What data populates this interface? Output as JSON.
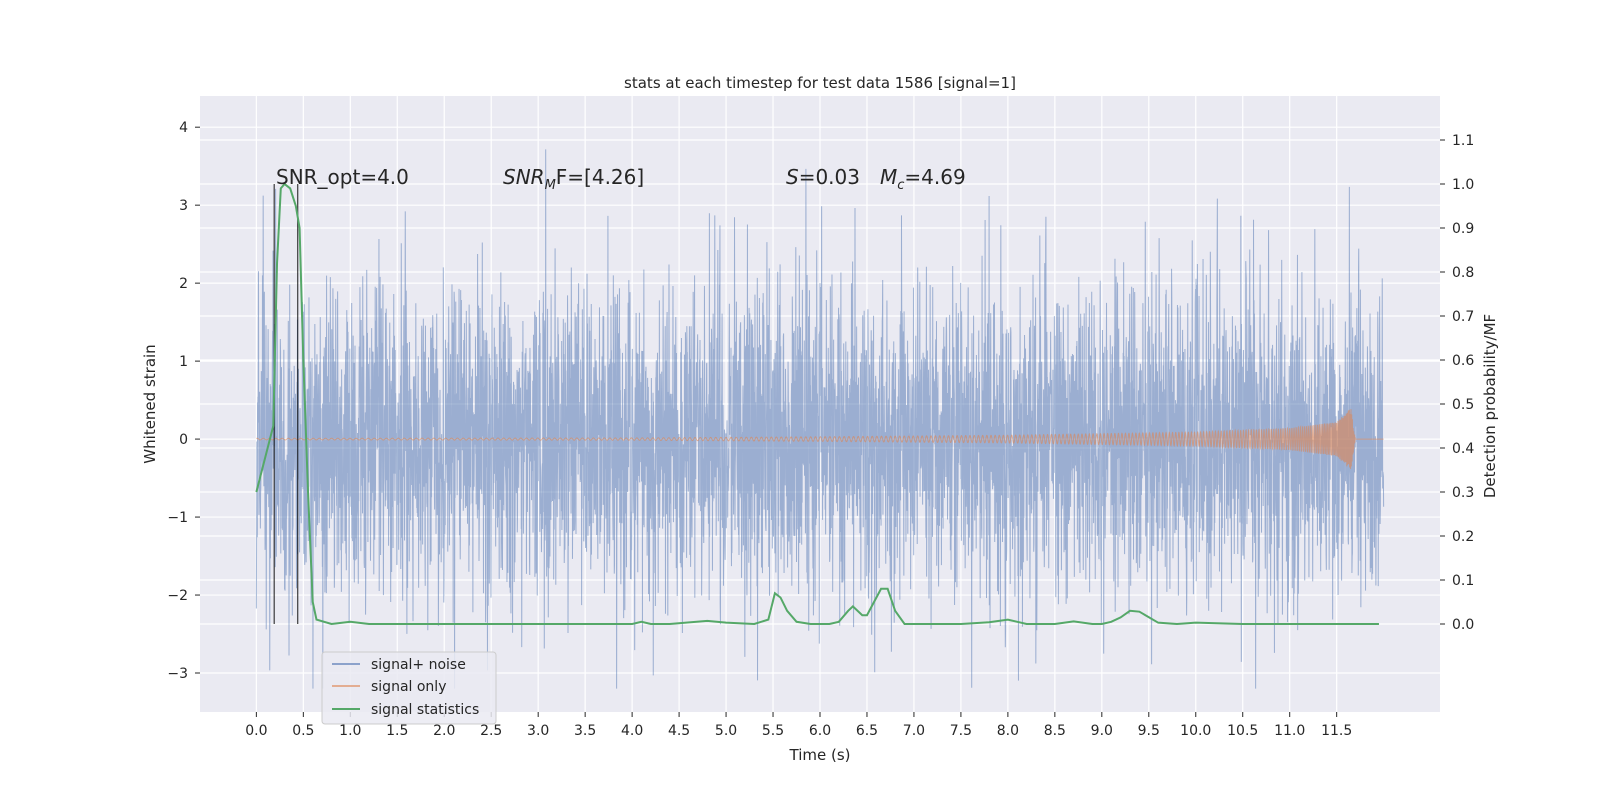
{
  "chart_data": {
    "type": "line",
    "title": "stats at each timestep for test data 1586 [signal=1]",
    "xlabel": "Time (s)",
    "ylabel_left": "Whitened strain",
    "ylabel_right": "Detection probability/MF",
    "xlim": [
      -0.6,
      12.6
    ],
    "ylim_left": [
      -3.5,
      4.4
    ],
    "ylim_right": [
      -0.2,
      1.2
    ],
    "x_ticks": [
      "0.0",
      "0.5",
      "1.0",
      "1.5",
      "2.0",
      "2.5",
      "3.0",
      "3.5",
      "4.0",
      "4.5",
      "5.0",
      "5.5",
      "6.0",
      "6.5",
      "7.0",
      "7.5",
      "8.0",
      "8.5",
      "9.0",
      "9.5",
      "10.0",
      "10.5",
      "11.0",
      "11.5"
    ],
    "y_ticks_left": [
      "4",
      "3",
      "2",
      "1",
      "0",
      "−1",
      "−2",
      "−3"
    ],
    "y_ticks_right": [
      "1.1",
      "1.0",
      "0.9",
      "0.8",
      "0.7",
      "0.6",
      "0.5",
      "0.4",
      "0.3",
      "0.2",
      "0.1",
      "0.0"
    ],
    "grid": true,
    "legend_position": "lower-left",
    "annotations": {
      "snr_opt": "SNR_opt=4.0",
      "snr_mf_sym": "SNR",
      "snr_mf_sub": "M",
      "snr_mf_rest": "F=[4.26]",
      "s_sym": "S",
      "s_val": "=0.03",
      "mc_sym": "M",
      "mc_sub": "c",
      "mc_val": "=4.69"
    },
    "markers": {
      "vertical_lines_x": [
        0.19,
        0.44
      ],
      "right_axis_vertical_lines_range": [
        0.0,
        1.0
      ]
    },
    "series": [
      {
        "name": "signal+ noise",
        "color": "#4c72b0",
        "axis": "left",
        "description_values": {
          "t_start": 0.0,
          "t_end": 12.0,
          "amplitude_std": 1.0,
          "min": -3.2,
          "max": 4.1
        }
      },
      {
        "name": "signal only",
        "color": "#dd8452",
        "axis": "left",
        "chirp_envelope": {
          "x": [
            0.0,
            4.0,
            6.0,
            8.0,
            10.0,
            11.0,
            11.5,
            11.65,
            11.7,
            12.0
          ],
          "amp": [
            0.01,
            0.015,
            0.03,
            0.05,
            0.09,
            0.14,
            0.22,
            0.4,
            0.0,
            0.0
          ]
        }
      },
      {
        "name": "signal statistics",
        "color": "#55a868",
        "axis": "right",
        "x": [
          0.0,
          0.12,
          0.18,
          0.22,
          0.26,
          0.3,
          0.36,
          0.42,
          0.46,
          0.5,
          0.55,
          0.6,
          0.64,
          0.8,
          1.0,
          1.2,
          2.0,
          3.0,
          4.0,
          4.1,
          4.2,
          4.4,
          4.8,
          5.0,
          5.3,
          5.45,
          5.52,
          5.58,
          5.65,
          5.75,
          5.9,
          6.1,
          6.2,
          6.3,
          6.35,
          6.45,
          6.5,
          6.6,
          6.65,
          6.72,
          6.8,
          6.9,
          7.0,
          7.5,
          7.8,
          8.0,
          8.1,
          8.2,
          8.5,
          8.7,
          8.9,
          9.0,
          9.1,
          9.2,
          9.3,
          9.4,
          9.6,
          9.8,
          10.0,
          10.5,
          11.0,
          11.5,
          11.95
        ],
        "values": [
          0.3,
          0.4,
          0.45,
          0.82,
          0.99,
          1.0,
          0.99,
          0.95,
          0.9,
          0.6,
          0.3,
          0.05,
          0.01,
          0.0,
          0.005,
          0.0,
          0.0,
          0.0,
          0.0,
          0.005,
          0.0,
          0.0,
          0.007,
          0.003,
          0.0,
          0.01,
          0.07,
          0.06,
          0.03,
          0.005,
          0.0,
          0.0,
          0.005,
          0.03,
          0.04,
          0.02,
          0.02,
          0.06,
          0.08,
          0.08,
          0.03,
          0.0,
          0.0,
          0.0,
          0.004,
          0.01,
          0.005,
          0.0,
          0.0,
          0.006,
          0.0,
          0.0,
          0.005,
          0.015,
          0.03,
          0.028,
          0.003,
          0.0,
          0.003,
          0.0,
          0.0,
          0.0,
          0.0
        ]
      }
    ]
  }
}
